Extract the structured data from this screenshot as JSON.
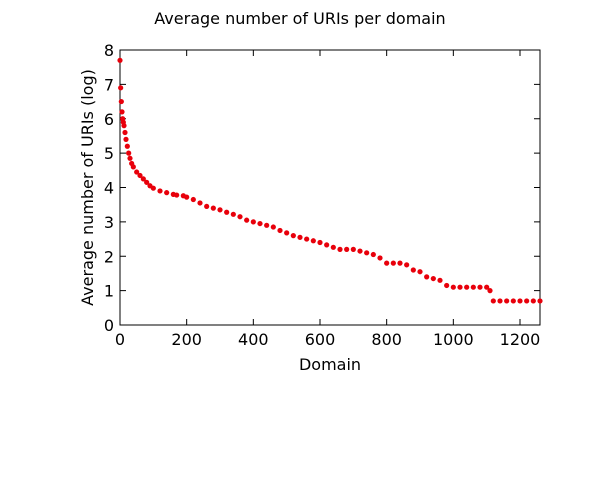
{
  "chart_data": {
    "type": "scatter",
    "title": "Average number of URIs per domain",
    "xlabel": "Domain",
    "ylabel": "Average number of URIs (log)",
    "xlim": [
      0,
      1260
    ],
    "ylim": [
      0,
      8
    ],
    "x_ticks": [
      0,
      200,
      400,
      600,
      800,
      1000,
      1200
    ],
    "y_ticks": [
      0,
      1,
      2,
      3,
      4,
      5,
      6,
      7,
      8
    ],
    "x_tick_labels": [
      "0",
      "200",
      "400",
      "600",
      "800",
      "1000",
      "1200"
    ],
    "y_tick_labels": [
      "0",
      "1",
      "2",
      "3",
      "4",
      "5",
      "6",
      "7",
      "8"
    ],
    "grid": false,
    "marker_color": "#e8000b",
    "series": [
      {
        "x": [
          0,
          2,
          4,
          6,
          8,
          10,
          12,
          15,
          18,
          22,
          26,
          30,
          35,
          40,
          50,
          60,
          70,
          80,
          90,
          100,
          120,
          140,
          160,
          170,
          190,
          200,
          220,
          240,
          260,
          280,
          300,
          320,
          340,
          360,
          380,
          400,
          420,
          440,
          460,
          480,
          500,
          520,
          540,
          560,
          580,
          600,
          620,
          640,
          660,
          680,
          700,
          720,
          740,
          760,
          780,
          800,
          820,
          840,
          860,
          880,
          900,
          920,
          940,
          960,
          980,
          1000,
          1020,
          1040,
          1060,
          1080,
          1100,
          1110,
          1120,
          1140,
          1160,
          1180,
          1200,
          1220,
          1240,
          1260
        ],
        "y": [
          7.7,
          6.9,
          6.5,
          6.2,
          6.0,
          5.9,
          5.8,
          5.6,
          5.4,
          5.2,
          5.0,
          4.85,
          4.7,
          4.6,
          4.45,
          4.35,
          4.25,
          4.15,
          4.05,
          3.98,
          3.9,
          3.85,
          3.8,
          3.78,
          3.76,
          3.72,
          3.65,
          3.55,
          3.45,
          3.4,
          3.35,
          3.28,
          3.22,
          3.15,
          3.05,
          3.0,
          2.95,
          2.9,
          2.85,
          2.75,
          2.68,
          2.6,
          2.55,
          2.5,
          2.45,
          2.4,
          2.33,
          2.26,
          2.2,
          2.2,
          2.2,
          2.15,
          2.1,
          2.05,
          1.95,
          1.8,
          1.8,
          1.8,
          1.75,
          1.6,
          1.55,
          1.4,
          1.35,
          1.3,
          1.15,
          1.1,
          1.1,
          1.1,
          1.1,
          1.1,
          1.1,
          1.0,
          0.7,
          0.7,
          0.7,
          0.7,
          0.7,
          0.7,
          0.7,
          0.7
        ]
      }
    ]
  }
}
